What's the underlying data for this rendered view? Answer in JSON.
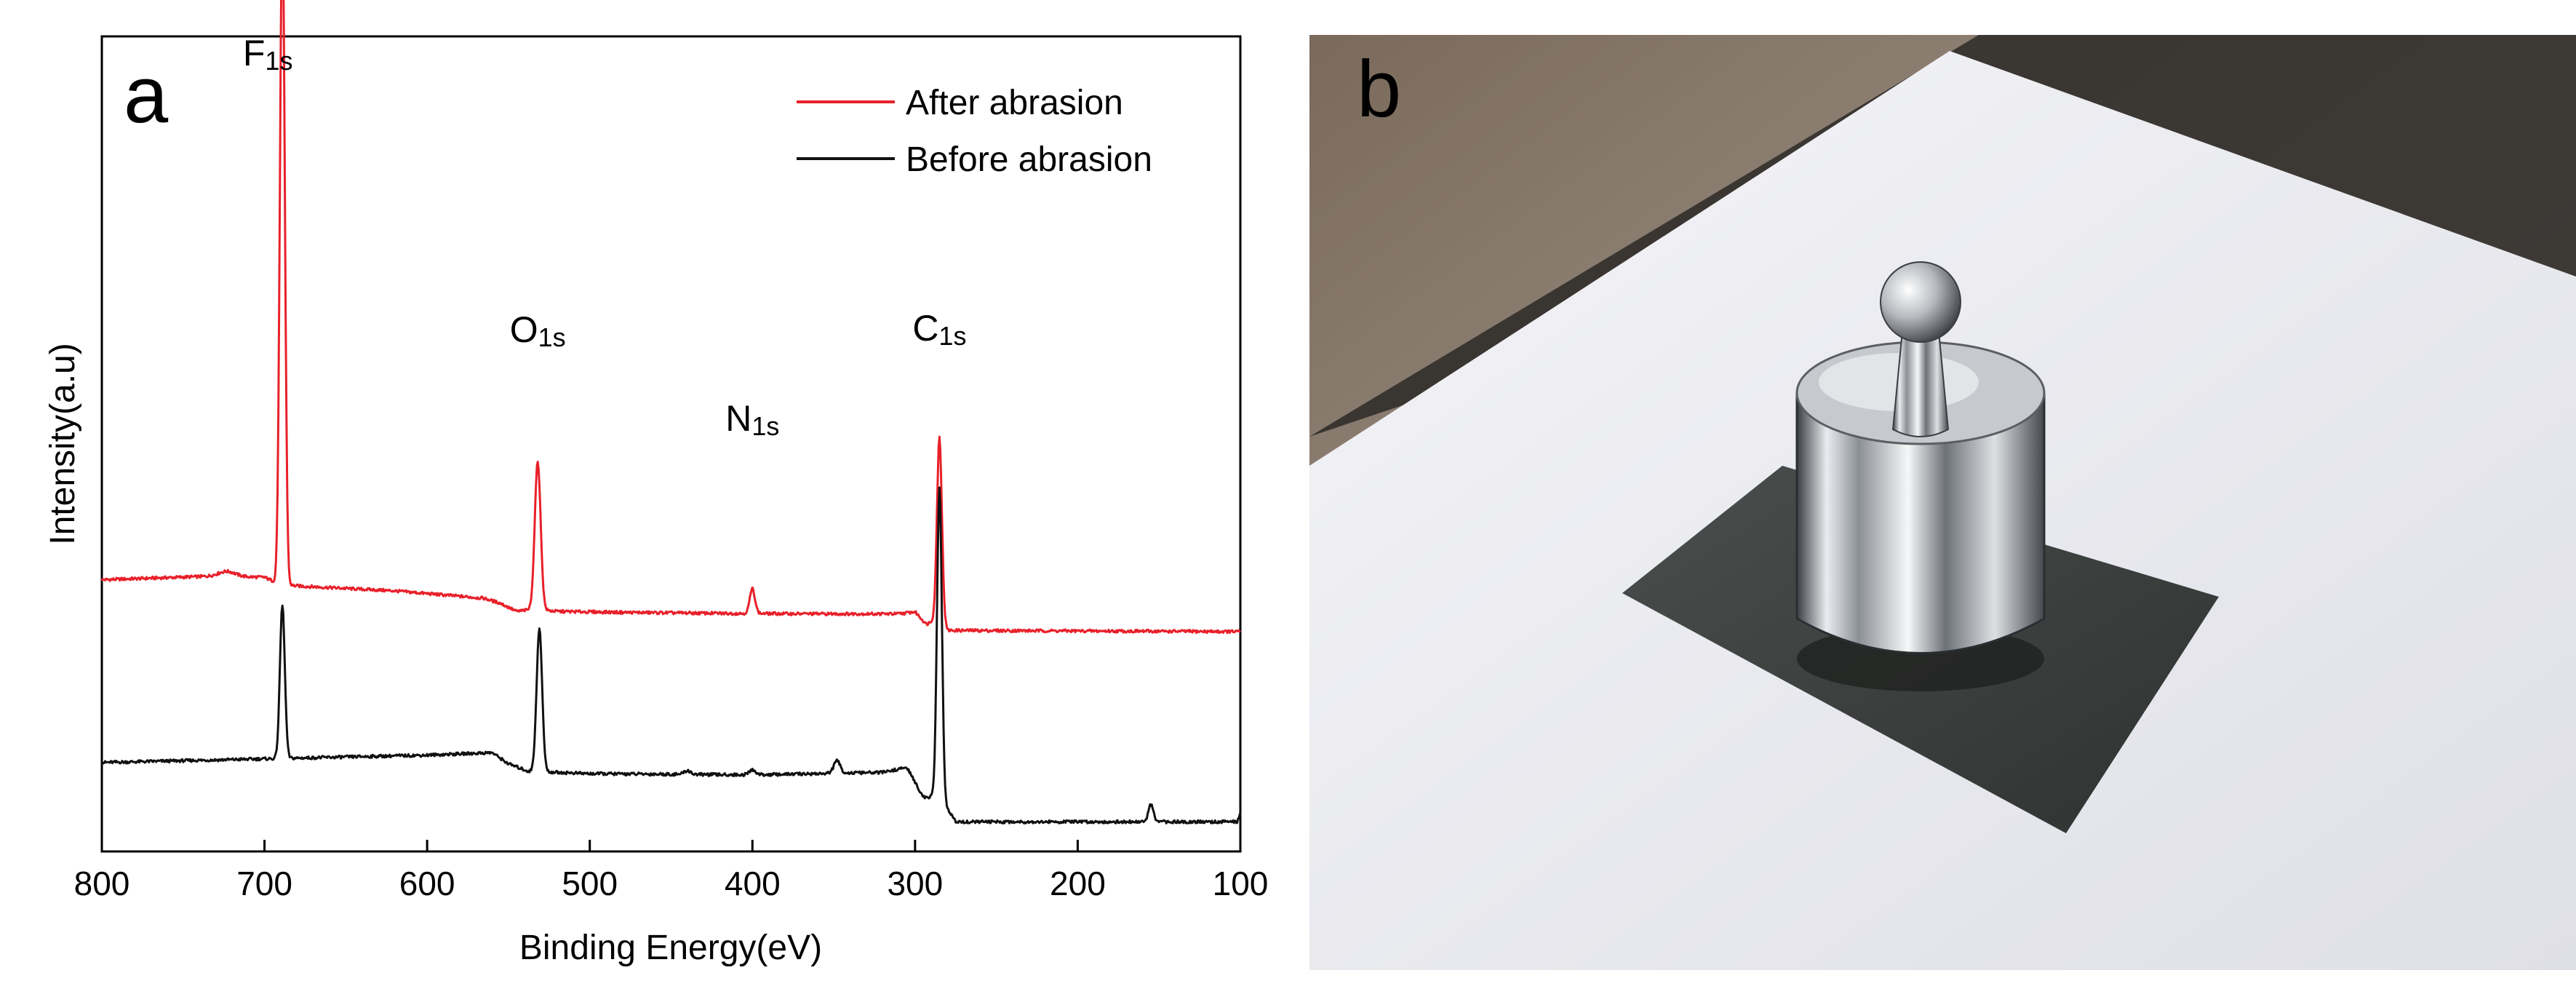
{
  "panel_a": {
    "label": "a",
    "chart_data": {
      "type": "line",
      "xlabel": "Binding Energy(eV)",
      "ylabel": "Intensity(a.u)",
      "xlim": [
        800,
        100
      ],
      "x_reversed": true,
      "xticks": [
        800,
        700,
        600,
        500,
        400,
        300,
        200,
        100
      ],
      "y_ticks_shown": false,
      "grid": false,
      "legend": "top-right",
      "colors": {
        "after": "#e8202a",
        "before": "#111111"
      },
      "annotations": [
        {
          "element": "F",
          "subscript": "1s",
          "x": 689
        },
        {
          "element": "O",
          "subscript": "1s",
          "x": 532
        },
        {
          "element": "N",
          "subscript": "1s",
          "x": 400
        },
        {
          "element": "C",
          "subscript": "1s",
          "x": 285
        }
      ],
      "series": [
        {
          "name": "After abrasion",
          "color": "#e8202a",
          "baseline": [
            [
              800,
              8.0
            ],
            [
              730,
              8.15
            ],
            [
              700,
              8.1
            ],
            [
              690,
              7.8
            ],
            [
              680,
              7.75
            ],
            [
              620,
              7.55
            ],
            [
              565,
              7.25
            ],
            [
              555,
              7.05
            ],
            [
              545,
              6.72
            ],
            [
              535,
              6.8
            ],
            [
              520,
              6.72
            ],
            [
              480,
              6.68
            ],
            [
              420,
              6.64
            ],
            [
              360,
              6.62
            ],
            [
              310,
              6.62
            ],
            [
              300,
              6.7
            ],
            [
              293,
              6.2
            ],
            [
              285,
              6.5
            ],
            [
              280,
              5.95
            ],
            [
              100,
              5.9
            ]
          ],
          "peaks": [
            {
              "center": 689,
              "height": 27.0,
              "width": 1.5
            },
            {
              "center": 532,
              "height": 6.0,
              "width": 1.8
            },
            {
              "center": 400,
              "height": 1.0,
              "width": 1.6
            },
            {
              "center": 285,
              "height": 7.3,
              "width": 1.5
            },
            {
              "center": 723,
              "height": 0.2,
              "width": 5
            }
          ]
        },
        {
          "name": "Before abrasion",
          "color": "#111111",
          "baseline": [
            [
              800,
              0.6
            ],
            [
              700,
              0.75
            ],
            [
              600,
              0.9
            ],
            [
              560,
              1.0
            ],
            [
              550,
              0.55
            ],
            [
              538,
              0.25
            ],
            [
              500,
              0.15
            ],
            [
              400,
              0.1
            ],
            [
              320,
              0.2
            ],
            [
              305,
              0.4
            ],
            [
              295,
              -0.8
            ],
            [
              285,
              -0.8
            ],
            [
              275,
              -1.8
            ],
            [
              102,
              -1.8
            ],
            [
              100,
              -1.4
            ]
          ],
          "peaks": [
            {
              "center": 689,
              "height": 6.2,
              "width": 1.5
            },
            {
              "center": 531,
              "height": 5.8,
              "width": 1.7
            },
            {
              "center": 285,
              "height": 12.5,
              "width": 1.5
            },
            {
              "center": 348,
              "height": 0.5,
              "width": 2
            },
            {
              "center": 400,
              "height": 0.2,
              "width": 2
            },
            {
              "center": 440,
              "height": 0.15,
              "width": 2
            },
            {
              "center": 155,
              "height": 0.7,
              "width": 1.5
            }
          ]
        }
      ]
    }
  },
  "panel_b": {
    "label": "b",
    "description_kind": "photo",
    "colors": {
      "background_top": "#8a7a6a",
      "paper": "#eeeef2",
      "sample": "#3e4240",
      "weight_metal": "#c9ccd0"
    }
  }
}
